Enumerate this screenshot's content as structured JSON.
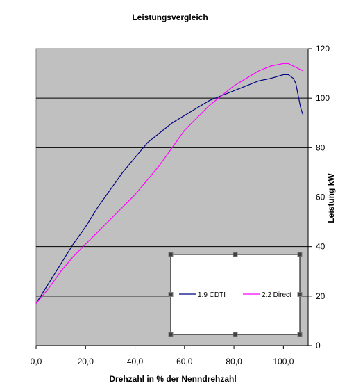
{
  "chart_data": {
    "type": "line",
    "title": "Leistungsvergleich",
    "xlabel": "Drehzahl in % der Nenndrehzahl",
    "ylabel": "Leistung kW",
    "xlim": [
      0,
      110
    ],
    "ylim": [
      0,
      120
    ],
    "x_ticks": [
      "0,0",
      "20,0",
      "40,0",
      "60,0",
      "80,0",
      "100,0"
    ],
    "x_tick_values": [
      0,
      20,
      40,
      60,
      80,
      100
    ],
    "y_ticks": [
      "0",
      "20",
      "40",
      "60",
      "80",
      "100",
      "120"
    ],
    "y_tick_values": [
      0,
      20,
      40,
      60,
      80,
      100,
      120
    ],
    "grid": "horizontal",
    "y_axis_side": "right",
    "legend_position": "bottom-right",
    "plot_background": "#c0c0c0",
    "series": [
      {
        "name": "1.9 CDTI",
        "color": "#000080",
        "points": [
          [
            0,
            17
          ],
          [
            5,
            25
          ],
          [
            10,
            33
          ],
          [
            15,
            41
          ],
          [
            20,
            48
          ],
          [
            25,
            56
          ],
          [
            30,
            63
          ],
          [
            35,
            70
          ],
          [
            40,
            76
          ],
          [
            45,
            82
          ],
          [
            50,
            86
          ],
          [
            55,
            90
          ],
          [
            60,
            93
          ],
          [
            65,
            96
          ],
          [
            70,
            99
          ],
          [
            75,
            101
          ],
          [
            80,
            103
          ],
          [
            85,
            105
          ],
          [
            90,
            107
          ],
          [
            95,
            108
          ],
          [
            100,
            109.5
          ],
          [
            102,
            109.5
          ],
          [
            104,
            108
          ],
          [
            105,
            106
          ],
          [
            106,
            101
          ],
          [
            107,
            96
          ],
          [
            108,
            93
          ]
        ]
      },
      {
        "name": "2.2 Direct",
        "color": "#ff00ff",
        "points": [
          [
            0,
            17
          ],
          [
            5,
            23
          ],
          [
            10,
            30
          ],
          [
            15,
            36
          ],
          [
            20,
            41
          ],
          [
            25,
            46
          ],
          [
            30,
            51
          ],
          [
            35,
            56
          ],
          [
            40,
            61
          ],
          [
            45,
            67
          ],
          [
            50,
            73
          ],
          [
            55,
            80
          ],
          [
            60,
            87
          ],
          [
            65,
            92
          ],
          [
            70,
            97
          ],
          [
            75,
            101
          ],
          [
            80,
            105
          ],
          [
            85,
            108
          ],
          [
            90,
            111
          ],
          [
            95,
            113
          ],
          [
            100,
            114
          ],
          [
            102,
            114
          ],
          [
            104,
            113
          ],
          [
            106,
            112
          ],
          [
            108,
            111
          ]
        ]
      }
    ]
  }
}
